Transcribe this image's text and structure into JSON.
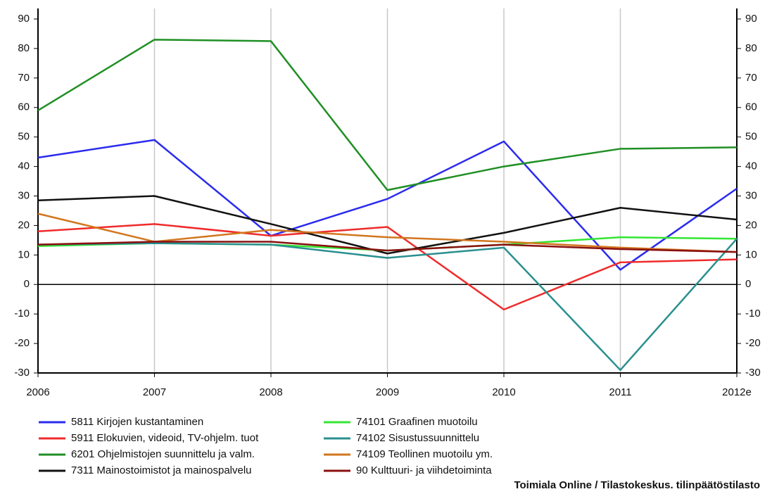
{
  "chart_data": {
    "type": "line",
    "categories": [
      "2006",
      "2007",
      "2008",
      "2009",
      "2010",
      "2011",
      "2012e"
    ],
    "series": [
      {
        "name": "5811 Kirjojen kustantaminen",
        "color": "#2b2bef",
        "values": [
          43,
          49,
          16.5,
          29,
          48.5,
          5,
          32.5
        ]
      },
      {
        "name": "5911 Elokuvien, videoid, TV-ohjelm. tuot",
        "color": "#ef2b2b",
        "values": [
          18,
          20.5,
          16.5,
          19.5,
          -8.5,
          7.5,
          8.5
        ]
      },
      {
        "name": "6201 Ohjelmistojen suunnittelu ja valm.",
        "color": "#1f8f24",
        "values": [
          59,
          83,
          82.5,
          32,
          40,
          46,
          46.5
        ]
      },
      {
        "name": "7311 Mainostoimistot ja mainospalvelu",
        "color": "#111111",
        "values": [
          28.5,
          30,
          20.5,
          10.5,
          17.5,
          26,
          22
        ]
      },
      {
        "name": "74101 Graafinen muotoilu",
        "color": "#33e633",
        "values": [
          13,
          14,
          13.5,
          11.5,
          13.5,
          16,
          15.5
        ]
      },
      {
        "name": "74102 Sisustussuunnittelu",
        "color": "#2a8f8f",
        "values": [
          13.5,
          14,
          13.5,
          9,
          12.5,
          -29,
          15.5
        ]
      },
      {
        "name": "74109 Teollinen muotoilu ym.",
        "color": "#d2761e",
        "values": [
          24,
          14.5,
          18.5,
          16,
          14.5,
          12.5,
          11
        ]
      },
      {
        "name": "90 Kulttuuri- ja viihdetoiminta",
        "color": "#8a1010",
        "values": [
          13.5,
          14.5,
          14.5,
          11.5,
          13.5,
          12,
          11
        ]
      }
    ],
    "ylim": [
      -30,
      90
    ],
    "yticks": [
      -30,
      -20,
      -10,
      0,
      10,
      20,
      30,
      40,
      50,
      60,
      70,
      80,
      90
    ],
    "grid": true,
    "source": "Toimiala Online / Tilastokeskus. tilinpäätöstilasto"
  }
}
